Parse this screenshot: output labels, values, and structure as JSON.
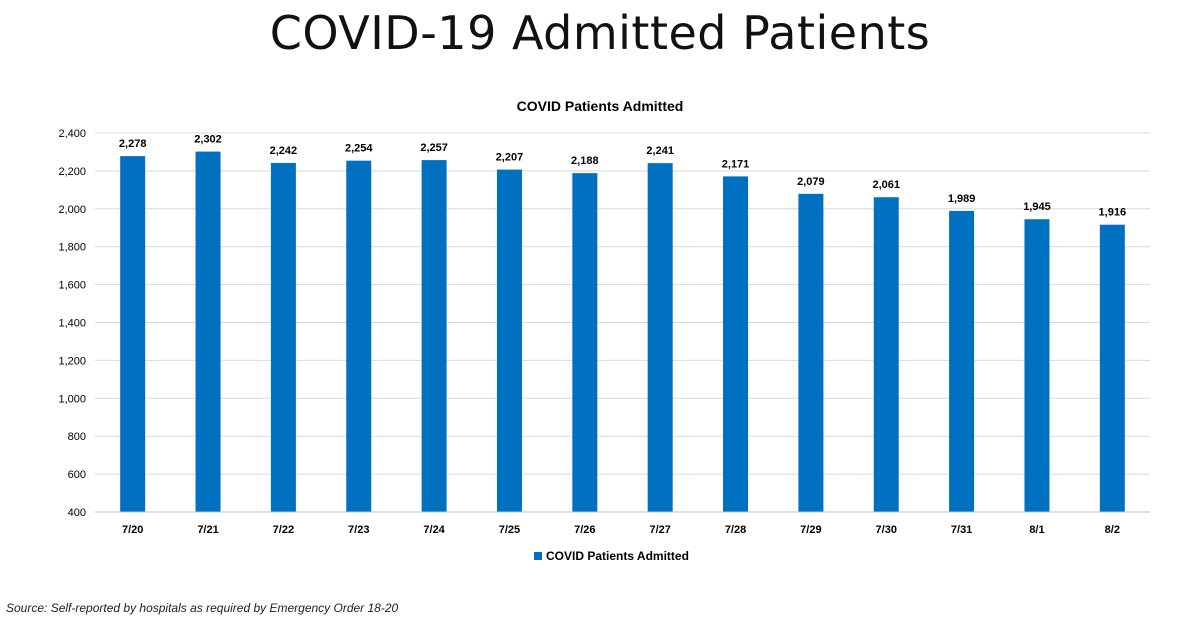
{
  "slide": {
    "title": "COVID-19 Admitted Patients",
    "source": "Source: Self-reported by hospitals as required by Emergency Order 18-20"
  },
  "chart_data": {
    "type": "bar",
    "title": "COVID Patients Admitted",
    "xlabel": "",
    "ylabel": "",
    "categories": [
      "7/20",
      "7/21",
      "7/22",
      "7/23",
      "7/24",
      "7/25",
      "7/26",
      "7/27",
      "7/28",
      "7/29",
      "7/30",
      "7/31",
      "8/1",
      "8/2"
    ],
    "series": [
      {
        "name": "COVID Patients Admitted",
        "values": [
          2278,
          2302,
          2242,
          2254,
          2257,
          2207,
          2188,
          2241,
          2171,
          2079,
          2061,
          1989,
          1945,
          1916
        ],
        "data_labels": [
          "2,278",
          "2,302",
          "2,242",
          "2,254",
          "2,257",
          "2,207",
          "2,188",
          "2,241",
          "2,171",
          "2,079",
          "2,061",
          "1,989",
          "1,945",
          "1,916"
        ],
        "color": "#0070C0"
      }
    ],
    "ylim": [
      400,
      2400
    ],
    "yticks": [
      400,
      600,
      800,
      1000,
      1200,
      1400,
      1600,
      1800,
      2000,
      2200,
      2400
    ],
    "ytick_labels": [
      "400",
      "600",
      "800",
      "1,000",
      "1,200",
      "1,400",
      "1,600",
      "1,800",
      "2,000",
      "2,200",
      "2,400"
    ],
    "grid": true,
    "gridline_color": "#D9D9D9",
    "legend_position": "bottom"
  }
}
